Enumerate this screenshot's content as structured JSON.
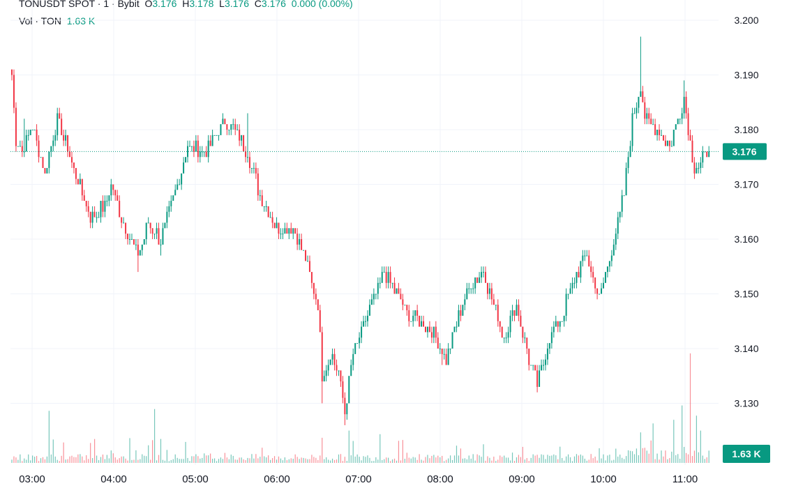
{
  "header": {
    "symbol": "TONUSDT SPOT · 1 · Bybit",
    "o_label": "O",
    "o_value": "3.176",
    "h_label": "H",
    "h_value": "3.178",
    "l_label": "L",
    "l_value": "3.176",
    "c_label": "C",
    "c_value": "3.176",
    "change": "0.000 (0.00%)",
    "vol_label": "Vol · TON",
    "vol_value": "1.63 K"
  },
  "colors": {
    "up": "#089981",
    "down": "#f23645",
    "badge": "#089981",
    "grid": "#f0f3fa"
  },
  "chart_data": {
    "type": "candlestick",
    "x_tick_labels": [
      "03:00",
      "04:00",
      "05:00",
      "06:00",
      "07:00",
      "08:00",
      "09:00",
      "10:00",
      "11:00"
    ],
    "y_tick_labels": [
      "3.200",
      "3.190",
      "3.180",
      "3.170",
      "3.160",
      "3.150",
      "3.140",
      "3.130"
    ],
    "y_ticks": [
      3.2,
      3.19,
      3.18,
      3.17,
      3.16,
      3.15,
      3.14,
      3.13
    ],
    "ylim": [
      3.1225,
      3.2035
    ],
    "last_price": "3.176",
    "last_volume": "1.63 K",
    "close_anchors": [
      [
        0,
        3.19
      ],
      [
        2,
        3.178
      ],
      [
        5,
        3.176
      ],
      [
        10,
        3.181
      ],
      [
        16,
        3.172
      ],
      [
        22,
        3.182
      ],
      [
        30,
        3.173
      ],
      [
        38,
        3.164
      ],
      [
        45,
        3.166
      ],
      [
        48,
        3.17
      ],
      [
        54,
        3.163
      ],
      [
        61,
        3.157
      ],
      [
        66,
        3.163
      ],
      [
        72,
        3.16
      ],
      [
        78,
        3.167
      ],
      [
        85,
        3.177
      ],
      [
        94,
        3.176
      ],
      [
        103,
        3.182
      ],
      [
        108,
        3.18
      ],
      [
        114,
        3.176
      ],
      [
        120,
        3.168
      ],
      [
        128,
        3.162
      ],
      [
        136,
        3.162
      ],
      [
        142,
        3.156
      ],
      [
        148,
        3.148
      ],
      [
        150,
        3.135
      ],
      [
        154,
        3.139
      ],
      [
        158,
        3.136
      ],
      [
        161,
        3.128
      ],
      [
        165,
        3.139
      ],
      [
        172,
        3.146
      ],
      [
        180,
        3.154
      ],
      [
        186,
        3.15
      ],
      [
        192,
        3.146
      ],
      [
        198,
        3.145
      ],
      [
        204,
        3.143
      ],
      [
        210,
        3.138
      ],
      [
        216,
        3.146
      ],
      [
        222,
        3.152
      ],
      [
        228,
        3.154
      ],
      [
        234,
        3.147
      ],
      [
        238,
        3.142
      ],
      [
        244,
        3.148
      ],
      [
        250,
        3.138
      ],
      [
        254,
        3.133
      ],
      [
        260,
        3.142
      ],
      [
        266,
        3.146
      ],
      [
        272,
        3.153
      ],
      [
        278,
        3.157
      ],
      [
        284,
        3.149
      ],
      [
        290,
        3.158
      ],
      [
        296,
        3.168
      ],
      [
        300,
        3.182
      ],
      [
        304,
        3.188
      ],
      [
        306,
        3.182
      ],
      [
        312,
        3.18
      ],
      [
        318,
        3.177
      ],
      [
        322,
        3.182
      ],
      [
        325,
        3.186
      ],
      [
        328,
        3.178
      ],
      [
        330,
        3.173
      ],
      [
        333,
        3.174
      ],
      [
        337,
        3.176
      ]
    ],
    "high_spikes": [
      [
        0,
        3.191
      ],
      [
        304,
        3.197
      ],
      [
        325,
        3.189
      ],
      [
        6,
        3.182
      ],
      [
        32,
        3.171
      ],
      [
        114,
        3.183
      ]
    ],
    "low_spikes": [
      [
        61,
        3.154
      ],
      [
        161,
        3.126
      ],
      [
        150,
        3.13
      ],
      [
        254,
        3.132
      ],
      [
        72,
        3.157
      ],
      [
        208,
        3.137
      ]
    ],
    "volume_spikes": [
      [
        18,
        29
      ],
      [
        69,
        30
      ],
      [
        150,
        14
      ],
      [
        163,
        18
      ],
      [
        178,
        16
      ],
      [
        304,
        17
      ],
      [
        310,
        22
      ],
      [
        320,
        24
      ],
      [
        324,
        32
      ],
      [
        328,
        61
      ],
      [
        333,
        18
      ]
    ],
    "volume_max": 66
  }
}
